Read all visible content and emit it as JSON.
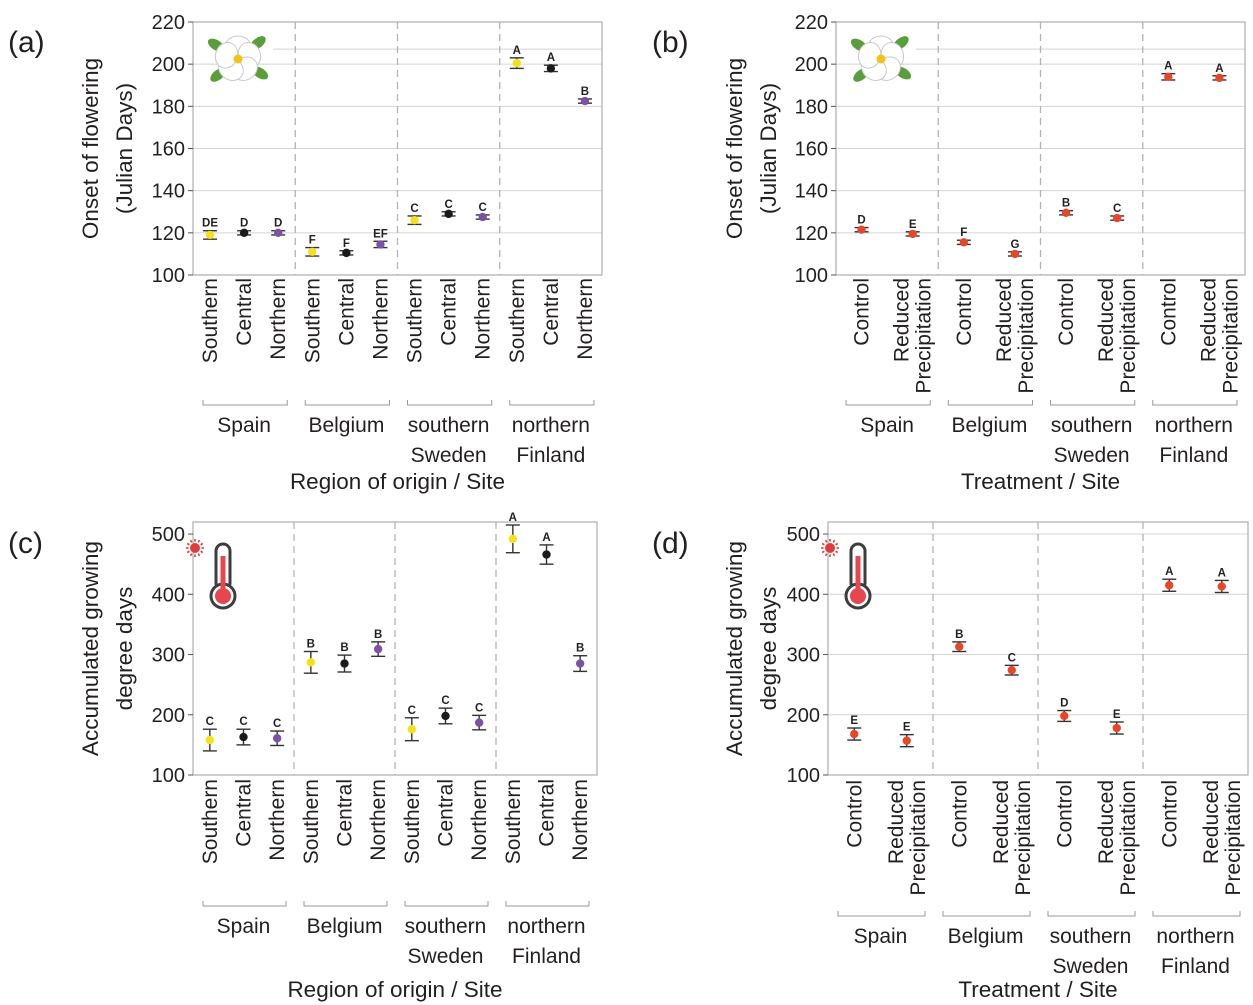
{
  "colors": {
    "southern": "#f5e11a",
    "central": "#1a1a1a",
    "northern": "#7b52a6",
    "treatment": "#e8462b",
    "divider": "#b3b3b3",
    "grid": "#d4d4d4",
    "frame": "#b3b3b3"
  },
  "icons": {
    "flower": "white-flower-icon",
    "thermometer": "thermometer-sun-icon"
  },
  "chart_data": [
    {
      "panel": "(a)",
      "type": "scatter",
      "icon": "flower",
      "ylabel": [
        "Onset of flowering",
        "(Julian Days)"
      ],
      "xlabel": "Region of origin / Site",
      "ylim": [
        100,
        220
      ],
      "yticks": [
        100,
        120,
        140,
        160,
        180,
        200,
        220
      ],
      "grid": true,
      "groups": [
        {
          "label": [
            "Spain"
          ],
          "categories": [
            "Southern",
            "Central",
            "Northern"
          ]
        },
        {
          "label": [
            "Belgium"
          ],
          "categories": [
            "Southern",
            "Central",
            "Northern"
          ]
        },
        {
          "label": [
            "southern",
            "Sweden"
          ],
          "categories": [
            "Southern",
            "Central",
            "Northern"
          ]
        },
        {
          "label": [
            "northern",
            "Finland"
          ],
          "categories": [
            "Southern",
            "Central",
            "Northern"
          ]
        }
      ],
      "points": [
        {
          "color": "southern",
          "y": 119,
          "lo": 117,
          "hi": 121,
          "letter": "DE"
        },
        {
          "color": "central",
          "y": 120,
          "lo": 119,
          "hi": 121,
          "letter": "D"
        },
        {
          "color": "northern",
          "y": 120,
          "lo": 119,
          "hi": 121,
          "letter": "D"
        },
        {
          "color": "southern",
          "y": 111,
          "lo": 109,
          "hi": 113,
          "letter": "F"
        },
        {
          "color": "central",
          "y": 110.5,
          "lo": 109.5,
          "hi": 111.5,
          "letter": "F"
        },
        {
          "color": "northern",
          "y": 114.5,
          "lo": 113,
          "hi": 116,
          "letter": "EF"
        },
        {
          "color": "southern",
          "y": 126,
          "lo": 124,
          "hi": 128,
          "letter": "C"
        },
        {
          "color": "central",
          "y": 129,
          "lo": 128,
          "hi": 130,
          "letter": "C"
        },
        {
          "color": "northern",
          "y": 127.5,
          "lo": 126.5,
          "hi": 128.5,
          "letter": "C"
        },
        {
          "color": "southern",
          "y": 200.5,
          "lo": 198,
          "hi": 203,
          "letter": "A"
        },
        {
          "color": "central",
          "y": 198,
          "lo": 196.5,
          "hi": 199.5,
          "letter": "A"
        },
        {
          "color": "northern",
          "y": 182.5,
          "lo": 181.5,
          "hi": 183.5,
          "letter": "B"
        }
      ]
    },
    {
      "panel": "(b)",
      "type": "scatter",
      "icon": "flower",
      "ylabel": [
        "Onset of flowering",
        "(Julian Days)"
      ],
      "xlabel": "Treatment / Site",
      "ylim": [
        100,
        220
      ],
      "yticks": [
        100,
        120,
        140,
        160,
        180,
        200,
        220
      ],
      "grid": true,
      "groups": [
        {
          "label": [
            "Spain"
          ],
          "categories": [
            "Control",
            "Reduced Precipitation"
          ]
        },
        {
          "label": [
            "Belgium"
          ],
          "categories": [
            "Control",
            "Reduced Precipitation"
          ]
        },
        {
          "label": [
            "southern",
            "Sweden"
          ],
          "categories": [
            "Control",
            "Reduced Precipitation"
          ]
        },
        {
          "label": [
            "northern",
            "Finland"
          ],
          "categories": [
            "Control",
            "Reduced Precipitation"
          ]
        }
      ],
      "points": [
        {
          "color": "treatment",
          "y": 121.5,
          "lo": 120.5,
          "hi": 122.5,
          "letter": "D"
        },
        {
          "color": "treatment",
          "y": 119.5,
          "lo": 118.5,
          "hi": 120.5,
          "letter": "E"
        },
        {
          "color": "treatment",
          "y": 115.5,
          "lo": 114.5,
          "hi": 116.5,
          "letter": "F"
        },
        {
          "color": "treatment",
          "y": 110,
          "lo": 109,
          "hi": 111,
          "letter": "G"
        },
        {
          "color": "treatment",
          "y": 129.5,
          "lo": 128.5,
          "hi": 130.5,
          "letter": "B"
        },
        {
          "color": "treatment",
          "y": 127,
          "lo": 126,
          "hi": 128,
          "letter": "C"
        },
        {
          "color": "treatment",
          "y": 194,
          "lo": 192.5,
          "hi": 195.5,
          "letter": "A"
        },
        {
          "color": "treatment",
          "y": 193.5,
          "lo": 192.5,
          "hi": 194.5,
          "letter": "A"
        }
      ]
    },
    {
      "panel": "(c)",
      "type": "scatter",
      "icon": "thermometer",
      "ylabel": [
        "Accumulated growing",
        "degree days"
      ],
      "xlabel": "Region of origin / Site",
      "ylim": [
        100,
        520
      ],
      "yticks": [
        100,
        200,
        300,
        400,
        500
      ],
      "grid": false,
      "groups": [
        {
          "label": [
            "Spain"
          ],
          "categories": [
            "Southern",
            "Central",
            "Northern"
          ]
        },
        {
          "label": [
            "Belgium"
          ],
          "categories": [
            "Southern",
            "Central",
            "Northern"
          ]
        },
        {
          "label": [
            "southern",
            "Sweden"
          ],
          "categories": [
            "Southern",
            "Central",
            "Northern"
          ]
        },
        {
          "label": [
            "northern",
            "Finland"
          ],
          "categories": [
            "Southern",
            "Central",
            "Northern"
          ]
        }
      ],
      "points": [
        {
          "color": "southern",
          "y": 158,
          "lo": 140,
          "hi": 176,
          "letter": "C"
        },
        {
          "color": "central",
          "y": 163,
          "lo": 150,
          "hi": 176,
          "letter": "C"
        },
        {
          "color": "northern",
          "y": 161,
          "lo": 149,
          "hi": 173,
          "letter": "C"
        },
        {
          "color": "southern",
          "y": 287,
          "lo": 269,
          "hi": 305,
          "letter": "B"
        },
        {
          "color": "central",
          "y": 285,
          "lo": 271,
          "hi": 299,
          "letter": "B"
        },
        {
          "color": "northern",
          "y": 309,
          "lo": 297,
          "hi": 321,
          "letter": "B"
        },
        {
          "color": "southern",
          "y": 176,
          "lo": 157,
          "hi": 195,
          "letter": "C"
        },
        {
          "color": "central",
          "y": 198,
          "lo": 185,
          "hi": 211,
          "letter": "C"
        },
        {
          "color": "northern",
          "y": 187,
          "lo": 175,
          "hi": 199,
          "letter": "C"
        },
        {
          "color": "southern",
          "y": 492,
          "lo": 469,
          "hi": 515,
          "letter": "A"
        },
        {
          "color": "central",
          "y": 466,
          "lo": 450,
          "hi": 482,
          "letter": "A"
        },
        {
          "color": "northern",
          "y": 285,
          "lo": 272,
          "hi": 298,
          "letter": "B"
        }
      ]
    },
    {
      "panel": "(d)",
      "type": "scatter",
      "icon": "thermometer",
      "ylabel": [
        "Accumulated growing",
        "degree days"
      ],
      "xlabel": "Treatment / Site",
      "ylim": [
        100,
        520
      ],
      "yticks": [
        100,
        200,
        300,
        400,
        500
      ],
      "grid": true,
      "groups": [
        {
          "label": [
            "Spain"
          ],
          "categories": [
            "Control",
            "Reduced Precipitation"
          ]
        },
        {
          "label": [
            "Belgium"
          ],
          "categories": [
            "Control",
            "Reduced Precipitation"
          ]
        },
        {
          "label": [
            "southern",
            "Sweden"
          ],
          "categories": [
            "Control",
            "Reduced Precipitation"
          ]
        },
        {
          "label": [
            "northern",
            "Finland"
          ],
          "categories": [
            "Control",
            "Reduced Precipitation"
          ]
        }
      ],
      "points": [
        {
          "color": "treatment",
          "y": 168,
          "lo": 158,
          "hi": 178,
          "letter": "E"
        },
        {
          "color": "treatment",
          "y": 157,
          "lo": 147,
          "hi": 167,
          "letter": "E"
        },
        {
          "color": "treatment",
          "y": 313,
          "lo": 305,
          "hi": 321,
          "letter": "B"
        },
        {
          "color": "treatment",
          "y": 274,
          "lo": 266,
          "hi": 282,
          "letter": "C"
        },
        {
          "color": "treatment",
          "y": 198,
          "lo": 189,
          "hi": 207,
          "letter": "D"
        },
        {
          "color": "treatment",
          "y": 178,
          "lo": 168,
          "hi": 188,
          "letter": "E"
        },
        {
          "color": "treatment",
          "y": 415,
          "lo": 405,
          "hi": 425,
          "letter": "A"
        },
        {
          "color": "treatment",
          "y": 413,
          "lo": 403,
          "hi": 423,
          "letter": "A"
        }
      ]
    }
  ]
}
